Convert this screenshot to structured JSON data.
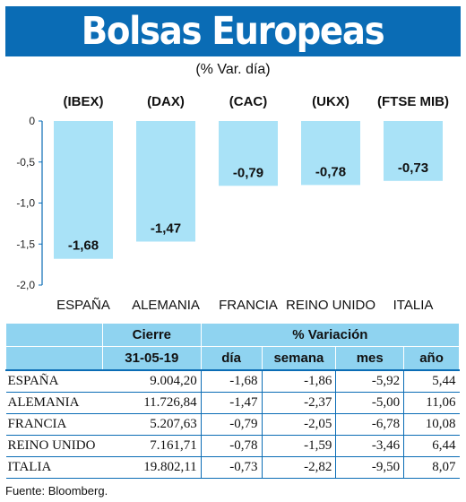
{
  "header": {
    "title": "Bolsas Europeas",
    "subtitle": "(% Var. día)"
  },
  "chart_data": {
    "type": "bar",
    "indices": [
      "(IBEX)",
      "(DAX)",
      "(CAC)",
      "(UKX)",
      "(FTSE MIB)"
    ],
    "categories": [
      "ESPAÑA",
      "ALEMANIA",
      "FRANCIA",
      "REINO UNIDO",
      "ITALIA"
    ],
    "values": [
      -1.68,
      -1.47,
      -0.79,
      -0.78,
      -0.73
    ],
    "value_labels": [
      "-1,68",
      "-1,47",
      "-0,79",
      "-0,78",
      "-0,73"
    ],
    "yticks": [
      0,
      -0.5,
      -1.0,
      -1.5,
      -2.0
    ],
    "ytick_labels": [
      "0",
      "-0,5",
      "-1,0",
      "-1,5",
      "-2,0"
    ],
    "ylim": [
      -2.0,
      0
    ],
    "grid": false,
    "bar_color": "#a9e2f7",
    "axis_color": "#0a6cb5"
  },
  "table": {
    "header_cierre": "Cierre",
    "header_variacion": "% Variación",
    "date": "31-05-19",
    "col_dia": "día",
    "col_semana": "semana",
    "col_mes": "mes",
    "col_ano": "año",
    "rows": [
      {
        "country": "ESPAÑA",
        "cierre": "9.004,20",
        "dia": "-1,68",
        "semana": "-1,86",
        "mes": "-5,92",
        "ano": "5,44"
      },
      {
        "country": "ALEMANIA",
        "cierre": "11.726,84",
        "dia": "-1,47",
        "semana": "-2,37",
        "mes": "-5,00",
        "ano": "11,06"
      },
      {
        "country": "FRANCIA",
        "cierre": "5.207,63",
        "dia": "-0,79",
        "semana": "-2,05",
        "mes": "-6,78",
        "ano": "10,08"
      },
      {
        "country": "REINO UNIDO",
        "cierre": "7.161,71",
        "dia": "-0,78",
        "semana": "-1,59",
        "mes": "-3,46",
        "ano": "6,44"
      },
      {
        "country": "ITALIA",
        "cierre": "19.802,11",
        "dia": "-0,73",
        "semana": "-2,82",
        "mes": "-9,50",
        "ano": "8,07"
      }
    ]
  },
  "source": "Fuente: Bloomberg.",
  "colors": {
    "title_bg": "#0a6cb5",
    "header_bg": "#8fd3f0",
    "rule": "#0a6cb5"
  }
}
